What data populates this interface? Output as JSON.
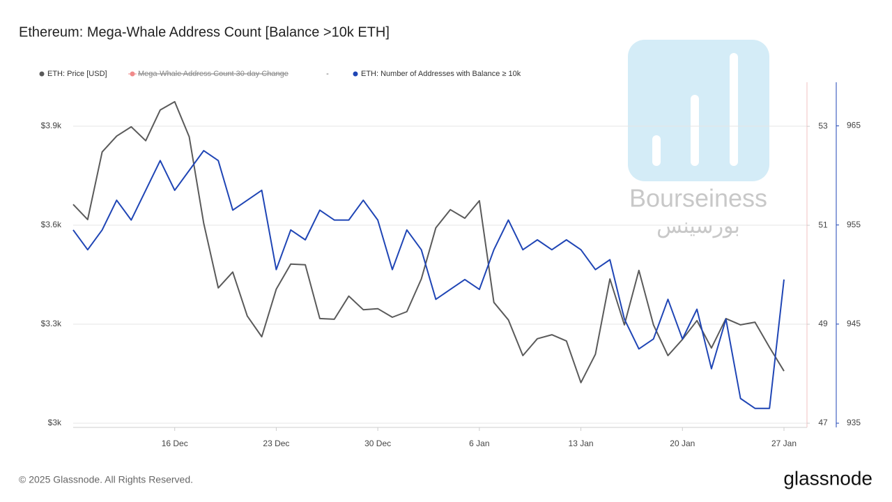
{
  "chart_data": {
    "type": "line",
    "title": "Ethereum: Mega-Whale Address Count [Balance >10k ETH]",
    "categories": [
      null,
      null,
      null,
      null,
      null,
      null,
      null,
      "16 Dec",
      null,
      null,
      null,
      null,
      null,
      null,
      "23 Dec",
      null,
      null,
      null,
      null,
      null,
      null,
      "30 Dec",
      null,
      null,
      null,
      null,
      null,
      null,
      "6 Jan",
      null,
      null,
      null,
      null,
      null,
      null,
      "13 Jan",
      null,
      null,
      null,
      null,
      null,
      null,
      "20 Jan",
      null,
      null,
      null,
      null,
      null,
      null,
      "27 Jan"
    ],
    "series": [
      {
        "name": "ETH: Price [USD]",
        "color": "#5a5a5a",
        "axis": "y",
        "values": [
          3663,
          3617,
          3822,
          3870,
          3898,
          3856,
          3949,
          3974,
          3868,
          3606,
          3410,
          3458,
          3325,
          3262,
          3406,
          3482,
          3480,
          3317,
          3315,
          3385,
          3344,
          3347,
          3321,
          3338,
          3437,
          3592,
          3647,
          3621,
          3674,
          3366,
          3313,
          3205,
          3256,
          3268,
          3249,
          3123,
          3209,
          3437,
          3298,
          3463,
          3298,
          3205,
          3254,
          3311,
          3228,
          3317,
          3298,
          3306,
          3230,
          3158
        ]
      },
      {
        "name": "Mega-Whale Address Count 30-day Change",
        "color": "#f08a8a",
        "axis": "y2",
        "hidden": true,
        "legend_value": "-"
      },
      {
        "name": "ETH: Number of Addresses with Balance ≥ 10k",
        "color": "#1f45b5",
        "axis": "y3",
        "values": [
          954.5,
          952.5,
          954.5,
          957.5,
          955.5,
          958.5,
          961.5,
          958.5,
          960.5,
          962.5,
          961.5,
          956.5,
          957.5,
          958.5,
          950.5,
          954.5,
          953.5,
          956.5,
          955.5,
          955.5,
          957.5,
          955.5,
          950.5,
          954.5,
          952.5,
          947.5,
          948.5,
          949.5,
          948.5,
          952.5,
          955.5,
          952.5,
          953.5,
          952.5,
          953.5,
          952.5,
          950.5,
          951.5,
          945.5,
          942.5,
          943.5,
          947.5,
          943.5,
          946.5,
          940.5,
          945.5,
          937.5,
          936.5,
          936.5,
          949.5
        ]
      }
    ],
    "ylim": [
      3000,
      4033
    ],
    "yticks": [
      {
        "value": 3000,
        "label": "$3k"
      },
      {
        "value": 3300,
        "label": "$3.3k"
      },
      {
        "value": 3600,
        "label": "$3.6k"
      },
      {
        "value": 3900,
        "label": "$3.9k"
      }
    ],
    "y2lim": [
      47,
      53.89
    ],
    "y2ticks": [
      47,
      49,
      51,
      53
    ],
    "y3lim": [
      935,
      969.4
    ],
    "y3ticks": [
      935,
      945,
      955,
      965
    ],
    "grid": true,
    "legend": "top-left",
    "watermark": "Bourseiness",
    "watermark_sub": "بورسینس",
    "footer": "© 2025 Glassnode. All Rights Reserved.",
    "brand": "glassnode"
  }
}
